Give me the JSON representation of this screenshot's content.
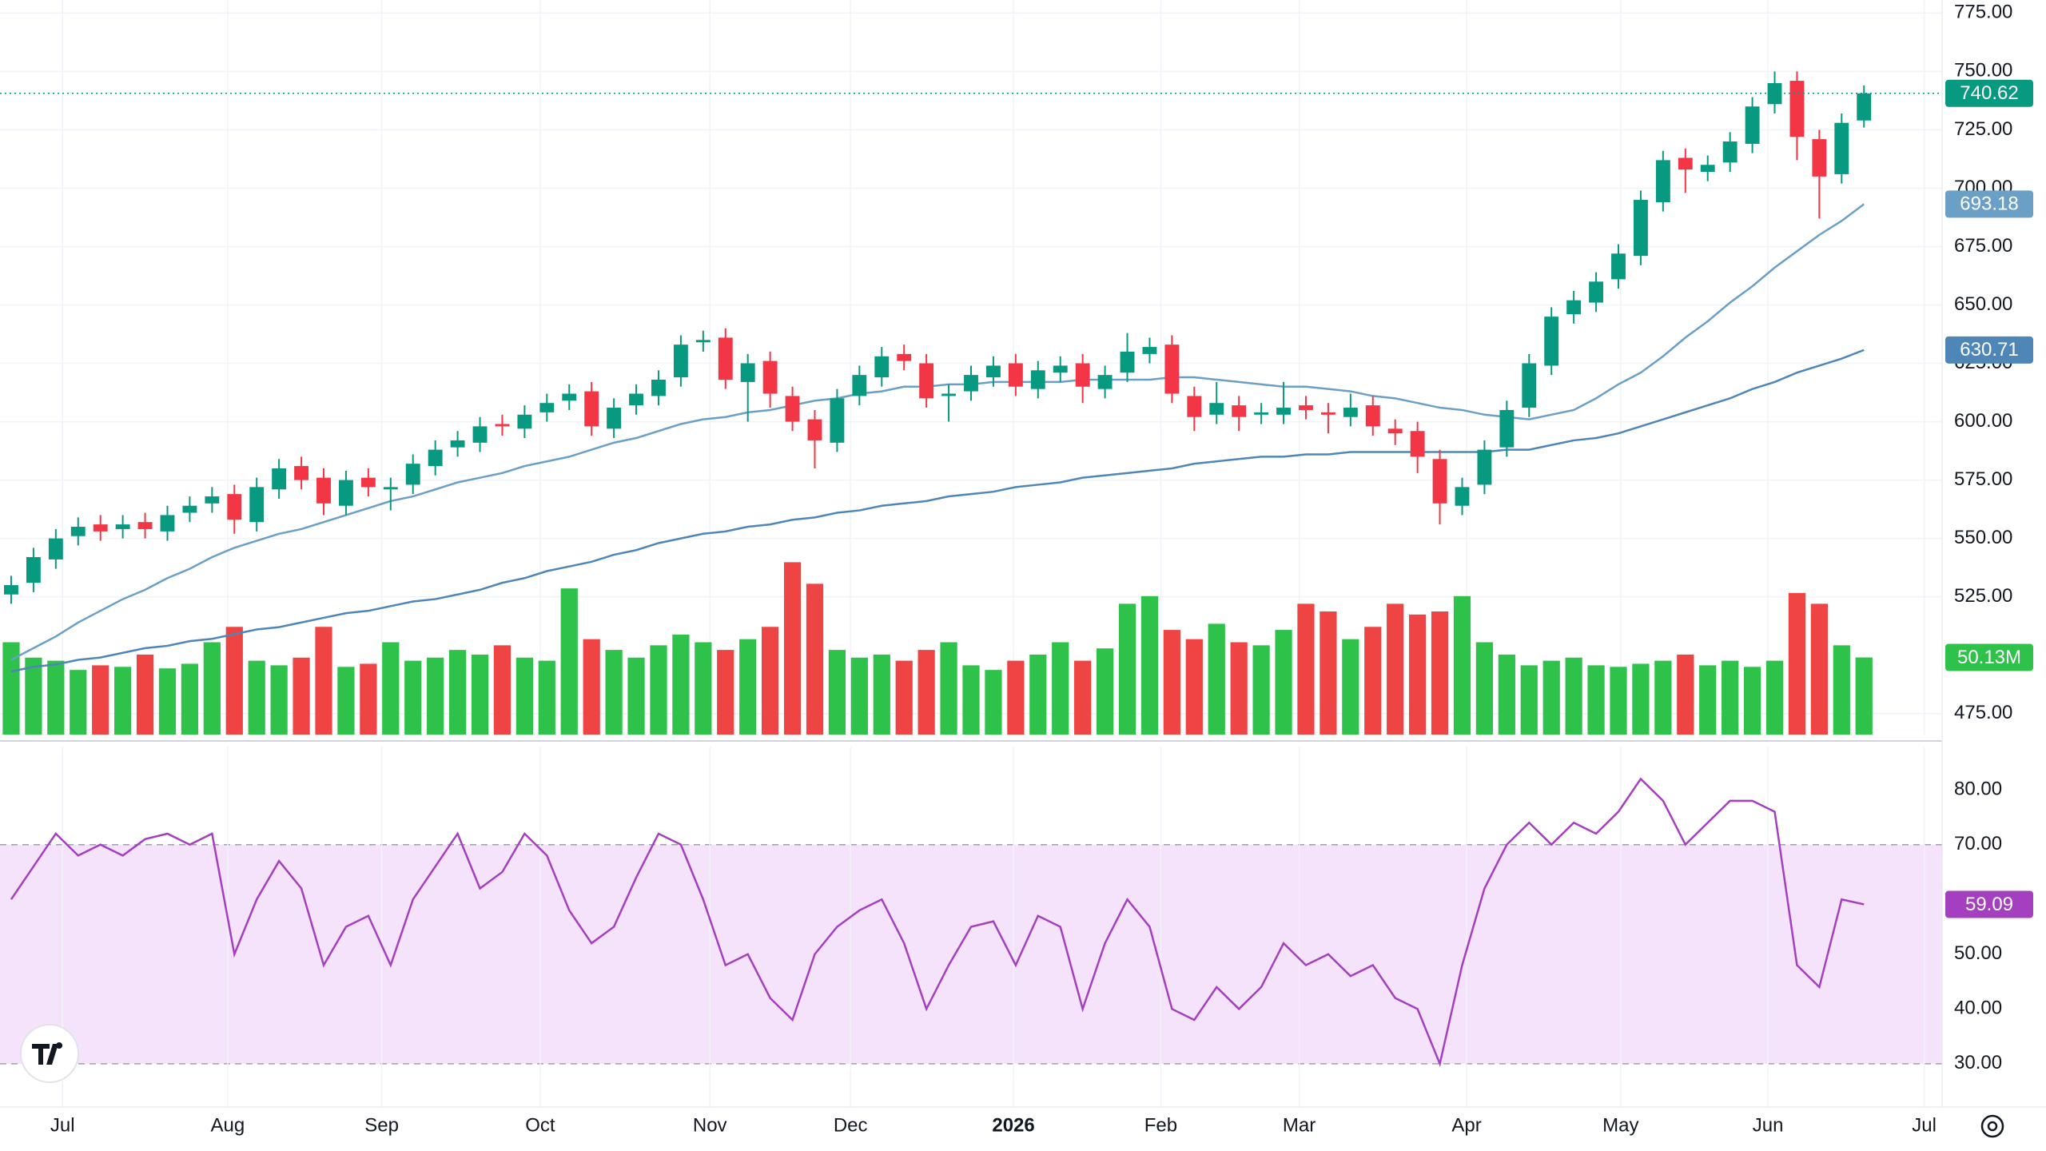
{
  "chart_data": {
    "type": "candlestick",
    "xlim": [
      -0.5,
      86.5
    ],
    "xticks": [
      {
        "value": 2.3,
        "label": "Jul"
      },
      {
        "value": 9.7,
        "label": "Aug"
      },
      {
        "value": 16.6,
        "label": "Sep"
      },
      {
        "value": 23.7,
        "label": "Oct"
      },
      {
        "value": 31.3,
        "label": "Nov"
      },
      {
        "value": 37.6,
        "label": "Dec"
      },
      {
        "value": 44.9,
        "label": "2026",
        "bold": true
      },
      {
        "value": 51.5,
        "label": "Feb"
      },
      {
        "value": 57.7,
        "label": "Mar"
      },
      {
        "value": 65.2,
        "label": "Apr"
      },
      {
        "value": 72.1,
        "label": "May"
      },
      {
        "value": 78.7,
        "label": "Jun"
      },
      {
        "value": 85.7,
        "label": "Jul"
      }
    ],
    "ylim": [
      466,
      780.6
    ],
    "yticks": [
      {
        "value": 475,
        "label": "475.00"
      },
      {
        "value": 525,
        "label": "525.00"
      },
      {
        "value": 550,
        "label": "550.00"
      },
      {
        "value": 575,
        "label": "575.00"
      },
      {
        "value": 600,
        "label": "600.00"
      },
      {
        "value": 625,
        "label": "625.00"
      },
      {
        "value": 650,
        "label": "650.00"
      },
      {
        "value": 675,
        "label": "675.00"
      },
      {
        "value": 700,
        "label": "700.00"
      },
      {
        "value": 725,
        "label": "725.00"
      },
      {
        "value": 750,
        "label": "750.00"
      },
      {
        "value": 775,
        "label": "775.00"
      }
    ],
    "grid": true,
    "up_color": "#089981",
    "down_color": "#f23645",
    "open": [
      526,
      531,
      541,
      551,
      556,
      554,
      557,
      553,
      561,
      565,
      569,
      557,
      571,
      581,
      576,
      564,
      576,
      571,
      573,
      581,
      589,
      591,
      599,
      597,
      604,
      609,
      613,
      597,
      607,
      611,
      619,
      634,
      636,
      617,
      626,
      611,
      601,
      591,
      611,
      619,
      629,
      625,
      611,
      613,
      619,
      625,
      614,
      621,
      625,
      614,
      621,
      629,
      633,
      611,
      603,
      607,
      603,
      603,
      607,
      604,
      602,
      607,
      597,
      596,
      584,
      564,
      573,
      589,
      606,
      624,
      646,
      651,
      661,
      671,
      694,
      713,
      707,
      711,
      719,
      736,
      746,
      721,
      706,
      729
    ],
    "high": [
      534,
      546,
      554,
      559,
      560,
      560,
      561,
      564,
      568,
      572,
      573,
      576,
      584,
      585,
      580,
      579,
      580,
      576,
      586,
      592,
      596,
      602,
      603,
      607,
      612,
      616,
      617,
      610,
      616,
      622,
      637,
      639,
      640,
      629,
      630,
      615,
      605,
      614,
      624,
      632,
      633,
      629,
      616,
      624,
      628,
      629,
      626,
      628,
      629,
      624,
      638,
      636,
      637,
      615,
      617,
      611,
      608,
      617,
      611,
      608,
      612,
      611,
      601,
      600,
      588,
      576,
      592,
      609,
      629,
      649,
      656,
      664,
      676,
      699,
      716,
      717,
      714,
      724,
      739,
      750,
      750,
      725,
      732,
      744
    ],
    "low": [
      522,
      527,
      537,
      547,
      549,
      550,
      550,
      549,
      557,
      561,
      552,
      553,
      567,
      571,
      560,
      560,
      568,
      562,
      569,
      577,
      585,
      587,
      594,
      593,
      600,
      605,
      594,
      593,
      603,
      607,
      615,
      630,
      614,
      600,
      606,
      596,
      580,
      587,
      607,
      615,
      622,
      606,
      600,
      609,
      615,
      611,
      610,
      617,
      608,
      610,
      617,
      625,
      608,
      596,
      599,
      596,
      599,
      599,
      601,
      595,
      598,
      594,
      590,
      578,
      556,
      560,
      569,
      585,
      602,
      620,
      642,
      647,
      657,
      667,
      690,
      698,
      703,
      707,
      715,
      732,
      712,
      687,
      702,
      726
    ],
    "close": [
      530,
      542,
      550,
      555,
      553,
      556,
      554,
      560,
      564,
      568,
      558,
      572,
      580,
      575,
      565,
      575,
      572,
      572,
      582,
      588,
      592,
      598,
      598,
      603,
      608,
      612,
      598,
      606,
      612,
      618,
      633,
      635,
      618,
      625,
      612,
      600,
      592,
      610,
      620,
      628,
      626,
      610,
      612,
      620,
      624,
      615,
      622,
      624,
      615,
      620,
      630,
      632,
      612,
      602,
      608,
      602,
      604,
      606,
      605,
      603,
      606,
      598,
      595,
      585,
      565,
      572,
      588,
      605,
      625,
      645,
      652,
      660,
      672,
      695,
      712,
      708,
      710,
      720,
      735,
      745,
      722,
      705,
      728,
      740.62
    ],
    "moving_averages": [
      {
        "color": "#6a9fc6",
        "values": [
          498,
          503,
          508,
          514,
          519,
          524,
          528,
          533,
          537,
          542,
          546,
          549,
          552,
          554,
          557,
          560,
          563,
          566,
          568,
          571,
          574,
          576,
          578,
          581,
          583,
          585,
          588,
          591,
          593,
          596,
          599,
          601,
          602,
          604,
          605,
          607,
          609,
          610,
          612,
          613,
          615,
          615,
          616,
          616,
          617,
          617,
          617,
          617,
          618,
          618,
          618,
          618,
          619,
          619,
          618,
          617,
          616,
          615,
          615,
          614,
          613,
          611,
          610,
          608,
          606,
          605,
          603,
          602,
          601,
          603,
          605,
          610,
          616,
          621,
          628,
          636,
          643,
          651,
          658,
          666,
          673,
          680,
          686,
          693.18
        ]
      },
      {
        "color": "#4f86b8",
        "values": [
          493,
          495,
          496,
          498,
          499,
          501,
          503,
          504,
          506,
          507,
          509,
          511,
          512,
          514,
          516,
          518,
          519,
          521,
          523,
          524,
          526,
          528,
          531,
          533,
          536,
          538,
          540,
          543,
          545,
          548,
          550,
          552,
          553,
          555,
          556,
          558,
          559,
          561,
          562,
          564,
          565,
          566,
          568,
          569,
          570,
          572,
          573,
          574,
          576,
          577,
          578,
          579,
          580,
          582,
          583,
          584,
          585,
          585,
          586,
          586,
          587,
          587,
          587,
          587,
          587,
          587,
          587,
          588,
          588,
          590,
          592,
          593,
          595,
          598,
          601,
          604,
          607,
          610,
          614,
          617,
          621,
          624,
          627,
          630.71
        ]
      }
    ],
    "volume": {
      "vlim": [
        0,
        120
      ],
      "up_color": "#2fc24a",
      "down_color": "#ef4444",
      "values": [
        60,
        50,
        48,
        42,
        45,
        44,
        52,
        43,
        46,
        60,
        70,
        48,
        45,
        50,
        70,
        44,
        46,
        60,
        48,
        50,
        55,
        52,
        58,
        50,
        48,
        95,
        62,
        55,
        50,
        58,
        65,
        60,
        55,
        62,
        70,
        112,
        98,
        55,
        50,
        52,
        48,
        55,
        60,
        45,
        42,
        48,
        52,
        60,
        48,
        56,
        85,
        90,
        68,
        62,
        72,
        60,
        58,
        68,
        85,
        80,
        62,
        70,
        85,
        78,
        80,
        90,
        60,
        52,
        45,
        48,
        50,
        45,
        44,
        46,
        48,
        52,
        45,
        48,
        44,
        48,
        92,
        85,
        58,
        50.13
      ],
      "last_value_label": "50.13M"
    },
    "rsi": {
      "ylim": [
        22.1,
        87.9
      ],
      "yticks": [
        {
          "value": 30,
          "label": "30.00"
        },
        {
          "value": 40,
          "label": "40.00"
        },
        {
          "value": 50,
          "label": "50.00"
        },
        {
          "value": 60,
          "label": "60.00"
        },
        {
          "value": 70,
          "label": "70.00"
        },
        {
          "value": 80,
          "label": "80.00"
        }
      ],
      "band": [
        30,
        70
      ],
      "color": "#a43fbf",
      "band_color": "#f4e3fb",
      "values": [
        60,
        66,
        72,
        68,
        70,
        68,
        71,
        72,
        70,
        72,
        50,
        60,
        67,
        62,
        48,
        55,
        57,
        48,
        60,
        66,
        72,
        62,
        65,
        72,
        68,
        58,
        52,
        55,
        64,
        72,
        70,
        60,
        48,
        50,
        42,
        38,
        50,
        55,
        58,
        60,
        52,
        40,
        48,
        55,
        56,
        48,
        57,
        55,
        40,
        52,
        60,
        55,
        40,
        38,
        44,
        40,
        44,
        52,
        48,
        50,
        46,
        48,
        42,
        40,
        30,
        48,
        62,
        70,
        74,
        70,
        74,
        72,
        76,
        82,
        78,
        70,
        74,
        78,
        78,
        76,
        48,
        44,
        60,
        59.09
      ]
    }
  }
}
